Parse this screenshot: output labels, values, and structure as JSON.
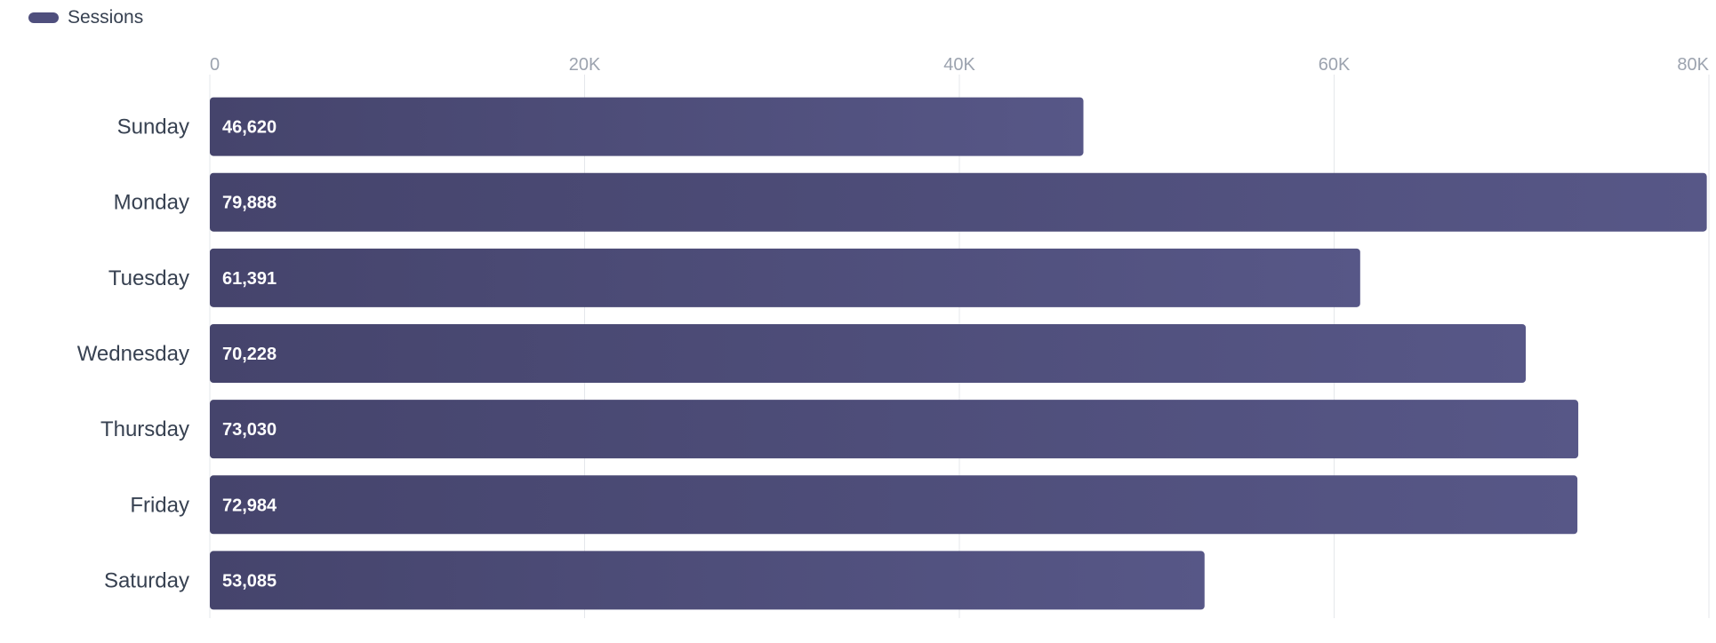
{
  "chart_data": {
    "type": "bar",
    "orientation": "horizontal",
    "categories": [
      "Sunday",
      "Monday",
      "Tuesday",
      "Wednesday",
      "Thursday",
      "Friday",
      "Saturday"
    ],
    "series": [
      {
        "name": "Sessions",
        "values": [
          46620,
          79888,
          61391,
          70228,
          73030,
          72984,
          53085
        ],
        "color": "#4f4f7d"
      }
    ],
    "x_ticks": [
      "0",
      "20K",
      "40K",
      "60K",
      "80K"
    ],
    "xlim": [
      0,
      80000
    ],
    "data_labels": [
      "46,620",
      "79,888",
      "61,391",
      "70,228",
      "73,030",
      "72,984",
      "53,085"
    ],
    "grid": true,
    "legend_position": "top-left"
  },
  "legend": {
    "label": "Sessions",
    "color": "#4f4f7d"
  }
}
